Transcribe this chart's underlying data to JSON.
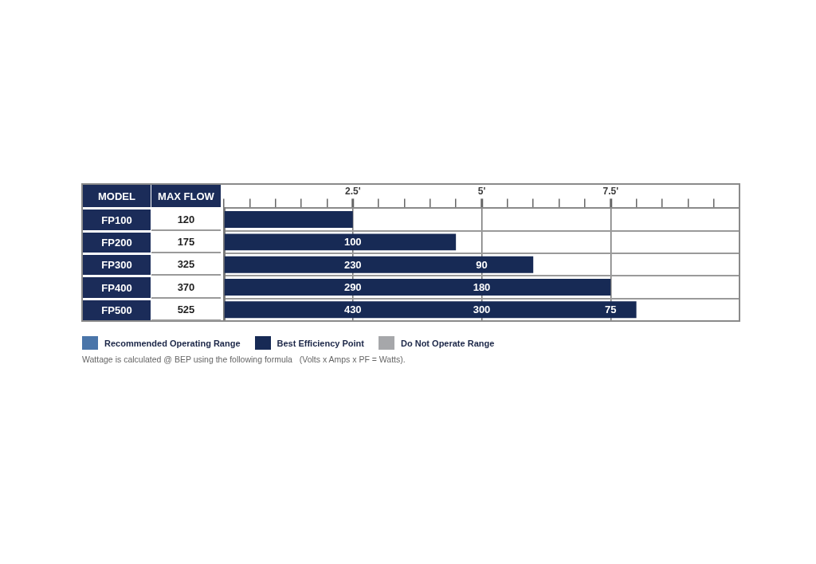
{
  "chart_data": {
    "type": "bar",
    "orientation": "horizontal",
    "ylabel": "MODEL",
    "y2label": "MAX FLOW",
    "categories": [
      "FP100",
      "FP200",
      "FP300",
      "FP400",
      "FP500"
    ],
    "y2_categories": [
      "120",
      "175",
      "325",
      "370",
      "525"
    ],
    "series": [
      {
        "name": "Recommended Operating Range",
        "color": "#4a75a9",
        "values": [
          null,
          null,
          null,
          null,
          null
        ]
      },
      {
        "name": "Best Efficiency Point",
        "color": "#172a55",
        "values": [
          2.5,
          4.5,
          6,
          7.5,
          8
        ]
      },
      {
        "name": "Do Not Operate Range",
        "color": "#a6a7aa",
        "values": [
          null,
          null,
          null,
          null,
          null
        ]
      }
    ],
    "xlim": [
      0,
      10
    ],
    "xticks": [
      {
        "value": 0,
        "label": null
      },
      {
        "value": 0.5,
        "label": null
      },
      {
        "value": 1,
        "label": null
      },
      {
        "value": 1.5,
        "label": null
      },
      {
        "value": 2,
        "label": null
      },
      {
        "value": 2.5,
        "label": "2.5'"
      },
      {
        "value": 3,
        "label": null
      },
      {
        "value": 3.5,
        "label": null
      },
      {
        "value": 4,
        "label": null
      },
      {
        "value": 4.5,
        "label": null
      },
      {
        "value": 5,
        "label": "5'"
      },
      {
        "value": 5.5,
        "label": null
      },
      {
        "value": 6,
        "label": null
      },
      {
        "value": 6.5,
        "label": null
      },
      {
        "value": 7,
        "label": null
      },
      {
        "value": 7.5,
        "label": "7.5'"
      },
      {
        "value": 8,
        "label": null
      },
      {
        "value": 8.5,
        "label": null
      },
      {
        "value": 9,
        "label": null
      },
      {
        "value": 9.5,
        "label": null
      }
    ],
    "grid": true,
    "legend": "bottom left",
    "annotations": [
      {
        "text": "100",
        "x": 2.5,
        "y": "FP200"
      },
      {
        "text": "230",
        "x": 2.5,
        "y": "FP300"
      },
      {
        "text": "90",
        "x": 5,
        "y": "FP300"
      },
      {
        "text": "290",
        "x": 2.5,
        "y": "FP400"
      },
      {
        "text": "180",
        "x": 5,
        "y": "FP400"
      },
      {
        "text": "430",
        "x": 2.5,
        "y": "FP500"
      },
      {
        "text": "300",
        "x": 5,
        "y": "FP500"
      },
      {
        "text": "75",
        "x": 7.5,
        "y": "FP500"
      },
      "Wattage is calculated @ BEP using the following formula   (Volts x Amps x PF = Watts)."
    ]
  }
}
